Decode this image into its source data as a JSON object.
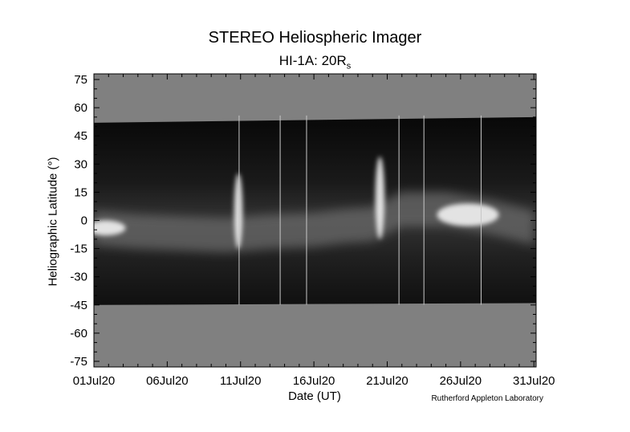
{
  "chart_data": {
    "type": "heatmap",
    "title": "STEREO Heliospheric Imager",
    "subtitle_main": "HI-1A: 20R",
    "subtitle_sub": "s",
    "xlabel": "Date (UT)",
    "ylabel": "Heliographic Latitude (°)",
    "x_ticks": [
      "01Jul20",
      "06Jul20",
      "11Jul20",
      "16Jul20",
      "21Jul20",
      "26Jul20",
      "31Jul20"
    ],
    "x_tick_days": [
      1,
      6,
      11,
      16,
      21,
      26,
      31
    ],
    "xlim": [
      1,
      31.15
    ],
    "ylim": [
      -78,
      78
    ],
    "y_ticks": [
      75,
      60,
      45,
      30,
      15,
      0,
      -15,
      -30,
      -45,
      -60,
      -75
    ],
    "coverage": {
      "start_day": 1.0,
      "end_day": 31.15,
      "top_lat_start": 52,
      "top_lat_end": 55,
      "bottom_lat_start": -45,
      "bottom_lat_end": -44
    },
    "data_gaps_days": [
      10.9,
      13.7,
      15.5,
      21.8,
      23.5,
      27.4
    ],
    "bright_features": [
      {
        "day": 10.85,
        "lat": 5,
        "width_days": 0.35,
        "height_deg": 40
      },
      {
        "day": 20.5,
        "lat": 12,
        "width_days": 0.4,
        "height_deg": 44
      },
      {
        "day": 1.8,
        "lat": -4,
        "width_days": 2.5,
        "height_deg": 8
      },
      {
        "day": 26.5,
        "lat": 3,
        "width_days": 4,
        "height_deg": 12
      }
    ],
    "grid": false,
    "colors": {
      "background_fill": "#808080",
      "band_dark": "#0d0d0d",
      "band_bright": "#f2f2f2"
    }
  },
  "credit": "Rutherford Appleton Laboratory"
}
